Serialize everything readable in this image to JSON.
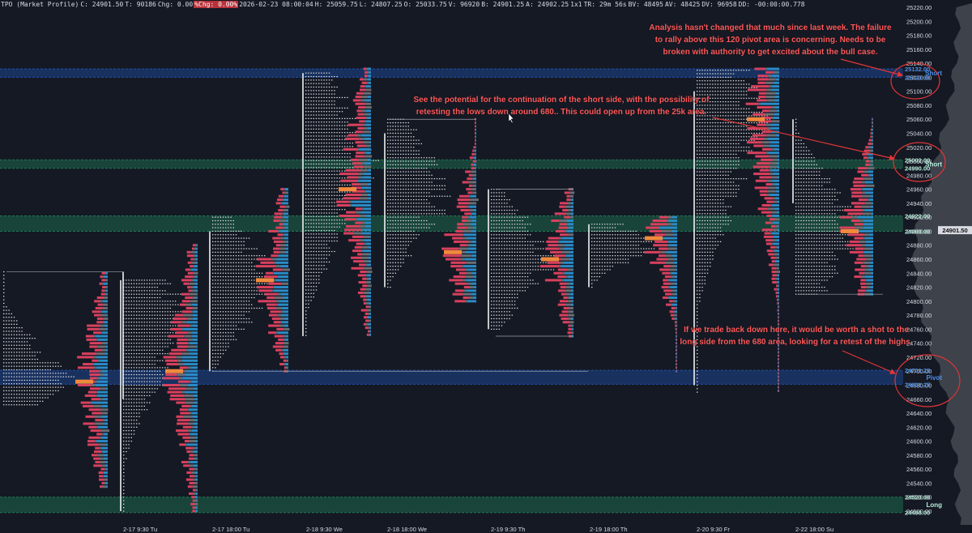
{
  "topbar": {
    "items": [
      {
        "text": "TPO (Market Profile)",
        "style": "plain"
      },
      {
        "text": "C: 24901.50",
        "style": "plain"
      },
      {
        "text": "T: 90186",
        "style": "plain"
      },
      {
        "text": "Chg: 0.00",
        "style": "plain"
      },
      {
        "text": "%Chg: 0.00%",
        "style": "red"
      },
      {
        "text": "2026-02-23 08:00:04",
        "style": "plain"
      },
      {
        "text": "H: 25059.75",
        "style": "plain"
      },
      {
        "text": "L: 24807.25",
        "style": "plain"
      },
      {
        "text": "O: 25033.75",
        "style": "plain"
      },
      {
        "text": "V: 96920",
        "style": "plain"
      },
      {
        "text": "B: 24901.25",
        "style": "plain"
      },
      {
        "text": "A: 24902.25",
        "style": "plain"
      },
      {
        "text": "1x1",
        "style": "plain"
      },
      {
        "text": "TR: 29m 56s",
        "style": "plain"
      },
      {
        "text": "BV: 48495",
        "style": "plain"
      },
      {
        "text": "AV: 48425",
        "style": "plain"
      },
      {
        "text": "DV: 96958",
        "style": "plain"
      },
      {
        "text": "DD: -00:00:00.778",
        "style": "plain"
      }
    ]
  },
  "annotations": [
    {
      "id": "ann-top-right",
      "lines": [
        "Analysis hasn't changed that much since last week.  The failure",
        "to rally above this 120 pivot area is concerning.  Needs to be",
        "broken with authority to get excited about the bull case."
      ]
    },
    {
      "id": "ann-middle",
      "lines": [
        "See the potential for the continuation of the short side, with the possibility of",
        "retesting the lows down around 680.. This could open up from the 25k area."
      ]
    },
    {
      "id": "ann-lower-right",
      "lines": [
        "If we trade back down here, it would be worth a shot to the",
        "long side from the 680 area, looking for a retest of the highs."
      ]
    }
  ],
  "chart_data": {
    "type": "tpo_market_profile",
    "symbol": "TPO (Market Profile)",
    "ylim": [
      24480,
      25226
    ],
    "price_ticks": [
      25220,
      25200,
      25180,
      25160,
      25140,
      25120,
      25100,
      25080,
      25060,
      25040,
      25020,
      25000,
      24980,
      24960,
      24940,
      24920,
      24900,
      24880,
      24860,
      24840,
      24820,
      24800,
      24780,
      24760,
      24740,
      24720,
      24700,
      24680,
      24660,
      24640,
      24620,
      24600,
      24580,
      24560,
      24540,
      24520,
      24500
    ],
    "price_tick_labels": [
      "25220.00",
      "25200.00",
      "25180.00",
      "25160.00",
      "25140.00",
      "25120.00",
      "25100.00",
      "25080.00",
      "25060.00",
      "25040.00",
      "25020.00",
      "25000.00",
      "24980.00",
      "24960.00",
      "24940.00",
      "24920.00",
      "24900.00",
      "24880.00",
      "24860.00",
      "24840.00",
      "24820.00",
      "24800.00",
      "24780.00",
      "24760.00",
      "24740.00",
      "24720.00",
      "24700.00",
      "24680.00",
      "24660.00",
      "24640.00",
      "24620.00",
      "24600.00",
      "24580.00",
      "24560.00",
      "24540.00",
      "24520.00",
      "24500.00"
    ],
    "time_labels": [
      "2-17  9:30 Tu",
      "2-17  18:00 Tu",
      "2-18  9:30 We",
      "2-18  18:00 We",
      "2-19  9:30 Th",
      "2-19  18:00 Th",
      "2-20  9:30 Fr",
      "2-22  18:00 Su"
    ],
    "last_price": {
      "value": 24901.5,
      "label": "24901.50"
    },
    "zones": [
      {
        "kind": "short",
        "label": "Short",
        "high": 25132,
        "low": 25120,
        "high_label": "25132.00",
        "low_label": "25120.00",
        "color": "#1f4fa8"
      },
      {
        "kind": "short",
        "label": "Short",
        "high": 25002,
        "low": 24990,
        "high_label": "25002.00",
        "low_label": "24990.00",
        "color": "#1f7a55"
      },
      {
        "kind": "level",
        "label": "",
        "high": 24922,
        "low": 24900,
        "high_label": "24922.00",
        "low_label": "24900.00",
        "color": "#1f7a55"
      },
      {
        "kind": "pivot",
        "label": "Pivot",
        "high": 24701.25,
        "low": 24681.25,
        "high_label": "24701.25",
        "low_label": "24681.25",
        "color": "#1f4fa8"
      },
      {
        "kind": "long",
        "label": "Long",
        "high": 24520,
        "low": 24498,
        "high_label": "24520.00",
        "low_label": "24498.00",
        "color": "#1f7a55"
      }
    ],
    "sessions": [
      {
        "tpo_high": 24842,
        "tpo_low": 24650,
        "va_high": 24842,
        "va_low": 24660,
        "poc": 24685,
        "vol_high": 24840,
        "vol_low": 24535,
        "vol_poc": 24685
      },
      {
        "tpo_high": 24830,
        "tpo_low": 24500,
        "va_high": 24830,
        "va_low": 24500,
        "poc": 24770,
        "vol_high": 24880,
        "vol_low": 24500,
        "vol_poc": 24700
      },
      {
        "tpo_high": 24920,
        "tpo_low": 24700,
        "va_high": 24900,
        "va_low": 24700,
        "poc": 24830,
        "vol_high": 24960,
        "vol_low": 24700,
        "vol_poc": 24830
      },
      {
        "tpo_high": 25126,
        "tpo_low": 24750,
        "va_high": 25126,
        "va_low": 24750,
        "poc": 25000,
        "vol_high": 25132,
        "vol_low": 24750,
        "vol_poc": 24960
      },
      {
        "tpo_high": 25060,
        "tpo_low": 24820,
        "va_high": 25040,
        "va_low": 24820,
        "poc": 24960,
        "vol_high": 25060,
        "vol_low": 24800,
        "vol_poc": 24870
      },
      {
        "tpo_high": 24960,
        "tpo_low": 24760,
        "va_high": 24960,
        "va_low": 24760,
        "poc": 24860,
        "vol_high": 24960,
        "vol_low": 24750,
        "vol_poc": 24860
      },
      {
        "tpo_high": 24910,
        "tpo_low": 24820,
        "va_high": 24910,
        "va_low": 24820,
        "poc": 24880,
        "vol_high": 24920,
        "vol_low": 24700,
        "vol_poc": 24890
      },
      {
        "tpo_high": 25130,
        "tpo_low": 24670,
        "va_high": 25100,
        "va_low": 24680,
        "poc": 25060,
        "vol_high": 25132,
        "vol_low": 24670,
        "vol_poc": 25060
      },
      {
        "tpo_high": 25060,
        "tpo_low": 24810,
        "va_high": 25060,
        "va_low": 24940,
        "poc": 24900,
        "vol_high": 25060,
        "vol_low": 24810,
        "vol_poc": 24900
      }
    ],
    "colors": {
      "background": "#151924",
      "tpo": "#e6e6e6",
      "vol_sell": "#d9405e",
      "vol_buy": "#2a8bc6",
      "vol_mid": "#6b6e74",
      "poc": "#f08a3c",
      "annotation": "#ff5a5a",
      "axis_text": "#d8dbe2"
    },
    "grid": false
  }
}
